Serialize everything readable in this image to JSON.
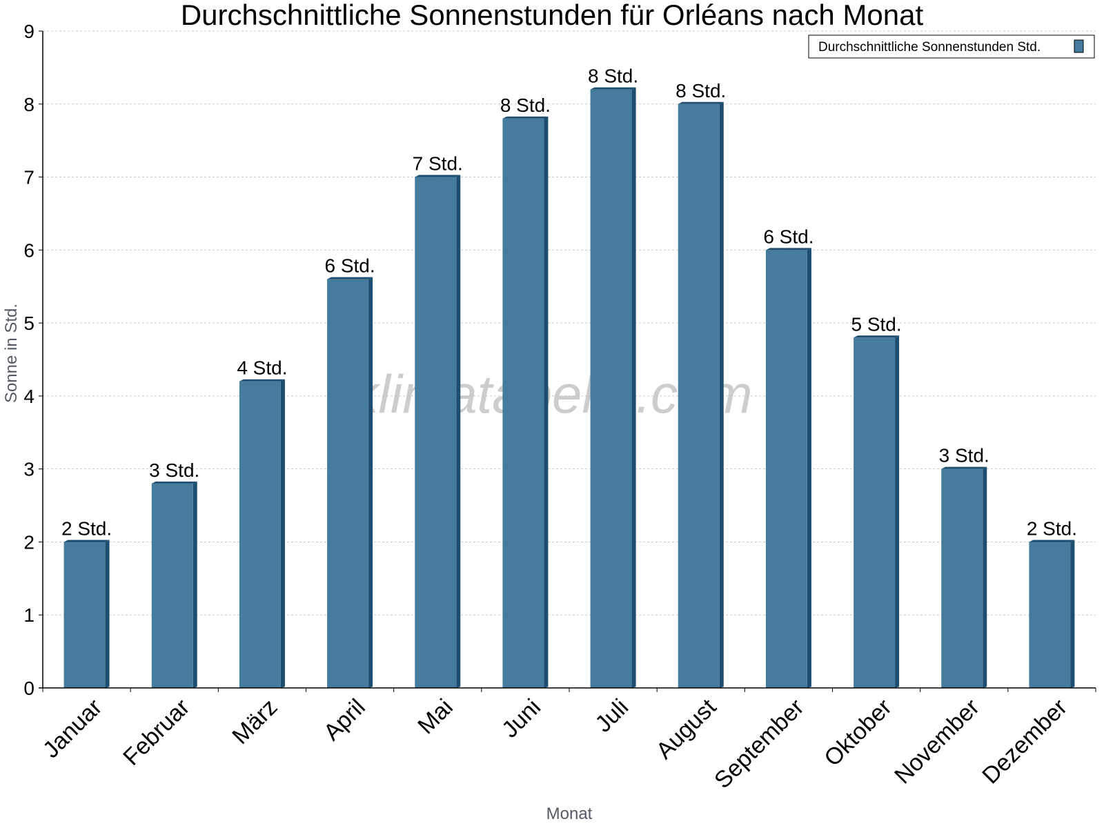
{
  "chart_data": {
    "type": "bar",
    "title": "Durchschnittliche Sonnenstunden für Orléans nach Monat",
    "xlabel": "Monat",
    "ylabel": "Sonne in Std.",
    "categories": [
      "Januar",
      "Februar",
      "März",
      "April",
      "Mai",
      "Juni",
      "Juli",
      "August",
      "September",
      "Oktober",
      "November",
      "Dezember"
    ],
    "series": [
      {
        "name": "Durchschnittliche Sonnenstunden Std.",
        "values": [
          2.0,
          2.8,
          4.2,
          5.6,
          7.0,
          7.8,
          8.2,
          8.0,
          6.0,
          4.8,
          3.0,
          2.0
        ],
        "data_labels": [
          "2 Std.",
          "3 Std.",
          "4 Std.",
          "6 Std.",
          "7 Std.",
          "8 Std.",
          "8 Std.",
          "8 Std.",
          "6 Std.",
          "5 Std.",
          "3 Std.",
          "2 Std."
        ]
      }
    ],
    "ylim": [
      0,
      9
    ],
    "yticks": [
      0,
      1,
      2,
      3,
      4,
      5,
      6,
      7,
      8,
      9
    ],
    "grid": true,
    "legend_position": "top-right",
    "colors": {
      "bar": "#457b9d",
      "bar_side": "#1d4e6f",
      "bar_top": "#1d4e6f",
      "grid": "#c8c8c8",
      "axis": "#000000",
      "axis_title": "#555b63"
    }
  },
  "watermark": "klimatabelle.com"
}
